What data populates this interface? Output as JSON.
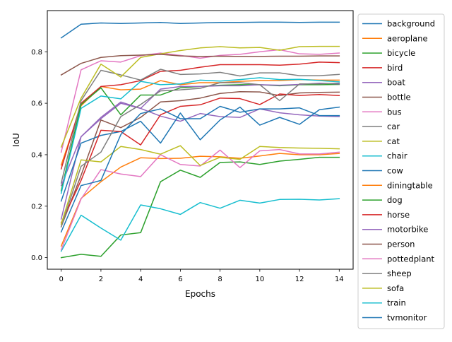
{
  "chart_data": {
    "type": "line",
    "title": "",
    "xlabel": "Epochs",
    "ylabel": "IoU",
    "xlim": [
      -0.7,
      14.7
    ],
    "ylim": [
      -0.045,
      0.96
    ],
    "xticks": [
      0,
      2,
      4,
      6,
      8,
      10,
      12,
      14
    ],
    "yticks": [
      0.0,
      0.2,
      0.4,
      0.6,
      0.8
    ],
    "xtick_labels": [
      "0",
      "2",
      "4",
      "6",
      "8",
      "10",
      "12",
      "14"
    ],
    "ytick_labels": [
      "0.0",
      "0.2",
      "0.4",
      "0.6",
      "0.8"
    ],
    "grid": false,
    "legend_position": "outside-right",
    "x": [
      0,
      1,
      2,
      3,
      4,
      5,
      6,
      7,
      8,
      9,
      10,
      11,
      12,
      13,
      14
    ],
    "series": [
      {
        "name": "background",
        "color": "#1f77b4",
        "values": [
          0.854,
          0.907,
          0.912,
          0.91,
          0.912,
          0.914,
          0.91,
          0.912,
          0.914,
          0.914,
          0.915,
          0.915,
          0.914,
          0.915,
          0.915
        ]
      },
      {
        "name": "aeroplane",
        "color": "#ff7f0e",
        "values": [
          0.36,
          0.59,
          0.665,
          0.652,
          0.655,
          0.688,
          0.672,
          0.68,
          0.68,
          0.685,
          0.688,
          0.688,
          0.692,
          0.69,
          0.69
        ]
      },
      {
        "name": "bicycle",
        "color": "#2ca02c",
        "values": [
          0.0,
          0.013,
          0.005,
          0.088,
          0.097,
          0.295,
          0.34,
          0.312,
          0.37,
          0.372,
          0.362,
          0.375,
          0.382,
          0.39,
          0.39
        ]
      },
      {
        "name": "bird",
        "color": "#d62728",
        "values": [
          0.345,
          0.6,
          0.665,
          0.672,
          0.688,
          0.724,
          0.728,
          0.74,
          0.75,
          0.75,
          0.75,
          0.748,
          0.752,
          0.76,
          0.758
        ]
      },
      {
        "name": "boat",
        "color": "#9467bd",
        "values": [
          0.15,
          0.47,
          0.54,
          0.6,
          0.58,
          0.55,
          0.53,
          0.56,
          0.548,
          0.545,
          0.578,
          0.563,
          0.555,
          0.55,
          0.548
        ]
      },
      {
        "name": "bottle",
        "color": "#8c564b",
        "values": [
          0.12,
          0.32,
          0.535,
          0.505,
          0.545,
          0.605,
          0.61,
          0.62,
          0.638,
          0.645,
          0.644,
          0.63,
          0.64,
          0.642,
          0.643
        ]
      },
      {
        "name": "bus",
        "color": "#e377c2",
        "values": [
          0.41,
          0.73,
          0.765,
          0.76,
          0.785,
          0.795,
          0.786,
          0.775,
          0.786,
          0.79,
          0.8,
          0.808,
          0.792,
          0.79,
          0.795
        ]
      },
      {
        "name": "car",
        "color": "#7f7f7f",
        "values": [
          0.29,
          0.61,
          0.728,
          0.71,
          0.69,
          0.732,
          0.712,
          0.714,
          0.72,
          0.706,
          0.718,
          0.718,
          0.707,
          0.707,
          0.712
        ]
      },
      {
        "name": "cat",
        "color": "#bcbd22",
        "values": [
          0.43,
          0.62,
          0.752,
          0.702,
          0.778,
          0.792,
          0.805,
          0.815,
          0.82,
          0.815,
          0.817,
          0.806,
          0.82,
          0.821,
          0.821
        ]
      },
      {
        "name": "chair",
        "color": "#17becf",
        "values": [
          0.025,
          0.165,
          0.115,
          0.068,
          0.205,
          0.19,
          0.168,
          0.214,
          0.192,
          0.223,
          0.212,
          0.226,
          0.227,
          0.224,
          0.229
        ]
      },
      {
        "name": "cow",
        "color": "#1f77b4",
        "values": [
          0.22,
          0.445,
          0.475,
          0.49,
          0.53,
          0.445,
          0.562,
          0.458,
          0.535,
          0.585,
          0.515,
          0.545,
          0.518,
          0.575,
          0.585
        ]
      },
      {
        "name": "diningtable",
        "color": "#ff7f0e",
        "values": [
          0.045,
          0.23,
          0.295,
          0.352,
          0.388,
          0.385,
          0.386,
          0.394,
          0.392,
          0.386,
          0.395,
          0.405,
          0.4,
          0.4,
          0.405
        ]
      },
      {
        "name": "dog",
        "color": "#2ca02c",
        "values": [
          0.26,
          0.595,
          0.66,
          0.555,
          0.632,
          0.632,
          0.66,
          0.665,
          0.67,
          0.672,
          0.672,
          0.668,
          0.672,
          0.672,
          0.673
        ]
      },
      {
        "name": "horse",
        "color": "#d62728",
        "values": [
          0.135,
          0.3,
          0.495,
          0.49,
          0.438,
          0.555,
          0.588,
          0.594,
          0.62,
          0.618,
          0.595,
          0.636,
          0.63,
          0.634,
          0.63
        ]
      },
      {
        "name": "motorbike",
        "color": "#9467bd",
        "values": [
          0.28,
          0.47,
          0.545,
          0.605,
          0.58,
          0.655,
          0.665,
          0.665,
          0.668,
          0.668,
          0.672,
          0.67,
          0.673,
          0.678,
          0.675
        ]
      },
      {
        "name": "person",
        "color": "#8c564b",
        "values": [
          0.71,
          0.755,
          0.778,
          0.785,
          0.787,
          0.79,
          0.784,
          0.782,
          0.783,
          0.782,
          0.782,
          0.783,
          0.783,
          0.784,
          0.784
        ]
      },
      {
        "name": "pottedplant",
        "color": "#e377c2",
        "values": [
          0.03,
          0.228,
          0.342,
          0.325,
          0.315,
          0.4,
          0.362,
          0.356,
          0.418,
          0.35,
          0.415,
          0.42,
          0.403,
          0.403,
          0.41
        ]
      },
      {
        "name": "sheep",
        "color": "#7f7f7f",
        "values": [
          0.12,
          0.355,
          0.41,
          0.548,
          0.595,
          0.648,
          0.652,
          0.658,
          0.68,
          0.68,
          0.672,
          0.61,
          0.675,
          0.675,
          0.678
        ]
      },
      {
        "name": "sofa",
        "color": "#bcbd22",
        "values": [
          0.13,
          0.38,
          0.372,
          0.432,
          0.42,
          0.402,
          0.435,
          0.358,
          0.39,
          0.382,
          0.432,
          0.428,
          0.426,
          0.425,
          0.423
        ]
      },
      {
        "name": "train",
        "color": "#17becf",
        "values": [
          0.25,
          0.58,
          0.628,
          0.617,
          0.685,
          0.672,
          0.675,
          0.69,
          0.686,
          0.692,
          0.699,
          0.692,
          0.693,
          0.688,
          0.683
        ]
      },
      {
        "name": "tvmonitor",
        "color": "#1f77b4",
        "values": [
          0.1,
          0.28,
          0.3,
          0.478,
          0.56,
          0.578,
          0.54,
          0.54,
          0.588,
          0.565,
          0.578,
          0.578,
          0.582,
          0.552,
          0.552
        ]
      }
    ]
  }
}
